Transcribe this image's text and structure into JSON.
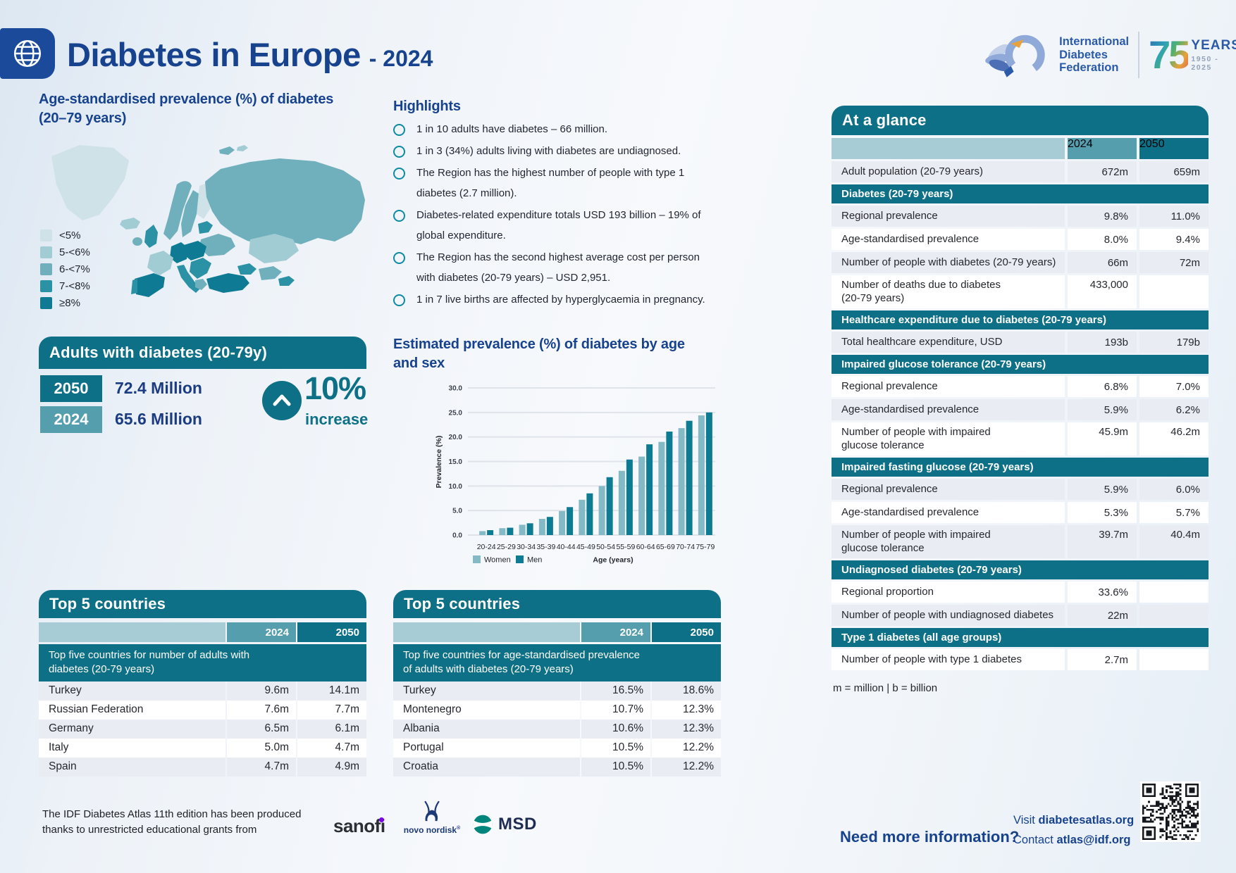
{
  "header": {
    "title": "Diabetes in Europe",
    "title_suffix": "- 2024",
    "logo": {
      "org_name": "International\nDiabetes\nFederation",
      "years_number": "75",
      "years_label": "YEARS",
      "years_range": "1950 - 2025"
    }
  },
  "map_section": {
    "title": "Age-standardised prevalence (%) of diabetes\n(20–79 years)",
    "legend": [
      {
        "label": "<5%",
        "color": "#cfe2e7"
      },
      {
        "label": "5-<6%",
        "color": "#a2ccd4"
      },
      {
        "label": "6-<7%",
        "color": "#6fb0bc"
      },
      {
        "label": "7-<8%",
        "color": "#2b91a4"
      },
      {
        "label": "≥8%",
        "color": "#0e7a93"
      }
    ]
  },
  "adults_panel": {
    "title": "Adults with diabetes (20-79y)",
    "rows": [
      {
        "year": "2050",
        "value": "72.4 Million"
      },
      {
        "year": "2024",
        "value": "65.6 Million"
      }
    ],
    "increase_value": "10%",
    "increase_label": "increase"
  },
  "highlights": {
    "title": "Highlights",
    "items": [
      "1 in 10 adults have diabetes – 66 million.",
      "1 in 3 (34%) adults living with diabetes are undiagnosed.",
      "The Region has the highest number of people with type 1 diabetes (2.7 million).",
      "Diabetes-related expenditure totals USD 193 billion – 19% of global expenditure.",
      "The Region has the second highest average cost per person with diabetes (20-79 years) – USD 2,951.",
      "1 in 7 live births are affected by hyperglycaemia in pregnancy."
    ]
  },
  "chart_section": {
    "heading": "Estimated prevalence (%) of diabetes by age\nand sex"
  },
  "chart_data": {
    "type": "bar",
    "title": "Estimated prevalence (%) of diabetes by age and sex",
    "categories": [
      "20-24",
      "25-29",
      "30-34",
      "35-39",
      "40-44",
      "45-49",
      "50-54",
      "55-59",
      "60-64",
      "65-69",
      "70-74",
      "75-79"
    ],
    "series": [
      {
        "name": "Women",
        "color": "#84b9c6",
        "values": [
          0.8,
          1.4,
          2.1,
          3.3,
          4.9,
          7.2,
          10.0,
          13.1,
          16.0,
          19.0,
          21.8,
          24.4
        ]
      },
      {
        "name": "Men",
        "color": "#0d7b92",
        "values": [
          1.0,
          1.5,
          2.4,
          3.7,
          5.7,
          8.5,
          11.8,
          15.4,
          18.5,
          21.1,
          23.3,
          25.0
        ]
      }
    ],
    "xlabel": "Age (years)",
    "ylabel": "Prevalence (%)",
    "ylim": [
      0,
      30
    ],
    "ytick_step": 5,
    "grid": true,
    "legend_position": "bottom"
  },
  "top5_left": {
    "title": "Top 5 countries",
    "col_2024": "2024",
    "col_2050": "2050",
    "subheader": "Top five countries for number of adults with\ndiabetes (20-79 years)",
    "rows": [
      {
        "country": "Turkey",
        "v2024": "9.6m",
        "v2050": "14.1m"
      },
      {
        "country": "Russian Federation",
        "v2024": "7.6m",
        "v2050": "7.7m"
      },
      {
        "country": "Germany",
        "v2024": "6.5m",
        "v2050": "6.1m"
      },
      {
        "country": "Italy",
        "v2024": "5.0m",
        "v2050": "4.7m"
      },
      {
        "country": "Spain",
        "v2024": "4.7m",
        "v2050": "4.9m"
      }
    ]
  },
  "top5_mid": {
    "title": "Top 5 countries",
    "col_2024": "2024",
    "col_2050": "2050",
    "subheader": "Top five countries for age-standardised prevalence\nof adults with diabetes (20-79 years)",
    "rows": [
      {
        "country": "Turkey",
        "v2024": "16.5%",
        "v2050": "18.6%"
      },
      {
        "country": "Montenegro",
        "v2024": "10.7%",
        "v2050": "12.3%"
      },
      {
        "country": "Albania",
        "v2024": "10.6%",
        "v2050": "12.3%"
      },
      {
        "country": "Portugal",
        "v2024": "10.5%",
        "v2050": "12.2%"
      },
      {
        "country": "Croatia",
        "v2024": "10.5%",
        "v2050": "12.2%"
      }
    ]
  },
  "at_a_glance": {
    "title": "At a glance",
    "col_2024": "2024",
    "col_2050": "2050",
    "rows": [
      {
        "label": "Adult population (20-79 years)",
        "v2024": "672m",
        "v2050": "659m"
      },
      {
        "section": "Diabetes (20-79 years)"
      },
      {
        "label": "Regional prevalence",
        "v2024": "9.8%",
        "v2050": "11.0%"
      },
      {
        "label": "Age-standardised prevalence",
        "v2024": "8.0%",
        "v2050": "9.4%"
      },
      {
        "label": "Number of people with diabetes (20-79 years)",
        "v2024": "66m",
        "v2050": "72m"
      },
      {
        "label": "Number of deaths due to diabetes\n(20-79 years)",
        "v2024": "433,000",
        "v2050": ""
      },
      {
        "section": "Healthcare expenditure due to diabetes (20-79 years)"
      },
      {
        "label": "Total healthcare expenditure, USD",
        "v2024": "193b",
        "v2050": "179b"
      },
      {
        "section": "Impaired glucose tolerance (20-79 years)"
      },
      {
        "label": "Regional prevalence",
        "v2024": "6.8%",
        "v2050": "7.0%"
      },
      {
        "label": "Age-standardised prevalence",
        "v2024": "5.9%",
        "v2050": "6.2%"
      },
      {
        "label": "Number of people with impaired\nglucose tolerance",
        "v2024": "45.9m",
        "v2050": "46.2m"
      },
      {
        "section": "Impaired fasting glucose (20-79 years)"
      },
      {
        "label": "Regional prevalence",
        "v2024": "5.9%",
        "v2050": "6.0%"
      },
      {
        "label": "Age-standardised prevalence",
        "v2024": "5.3%",
        "v2050": "5.7%"
      },
      {
        "label": "Number of people with impaired\nglucose tolerance",
        "v2024": "39.7m",
        "v2050": "40.4m"
      },
      {
        "section": "Undiagnosed diabetes (20-79 years)"
      },
      {
        "label": "Regional proportion",
        "v2024": "33.6%",
        "v2050": ""
      },
      {
        "label": "Number of people with undiagnosed diabetes",
        "v2024": "22m",
        "v2050": ""
      },
      {
        "section": "Type 1 diabetes (all age groups)"
      },
      {
        "label": "Number of people with type 1 diabetes",
        "v2024": "2.7m",
        "v2050": ""
      }
    ],
    "footnote": "m = million  |  b = billion"
  },
  "footer": {
    "credit_line": "The IDF Diabetes Atlas 11th edition has been produced thanks to unrestricted educational grants from",
    "sponsors": {
      "sanofi": "sanofi",
      "novo": "novo nordisk",
      "novo_reg": "®",
      "msd": "MSD"
    },
    "more_info": {
      "title": "Need more information?",
      "visit_prefix": "Visit",
      "visit_link": "diabetesatlas.org",
      "contact_prefix": "Contact",
      "contact_link": "atlas@idf.org"
    }
  }
}
